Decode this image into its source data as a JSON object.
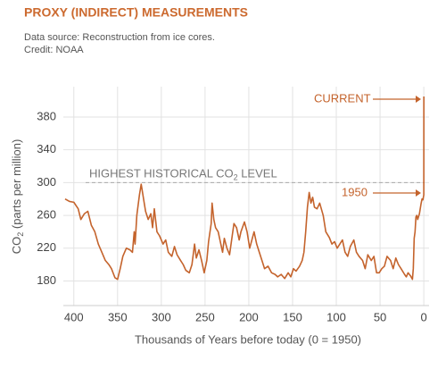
{
  "chart_data": {
    "type": "line",
    "title": "PROXY (INDIRECT) MEASUREMENTS",
    "subtitle": "Data source: Reconstruction from ice cores.",
    "credit": "Credit: NOAA",
    "xlabel": "Thousands of Years before today (0 = 1950)",
    "ylabel": [
      "CO",
      "2",
      " (parts per million)"
    ],
    "reference_line": {
      "value": 300,
      "label": [
        "HIGHEST HISTORICAL CO",
        "2",
        " LEVEL"
      ]
    },
    "annotations": [
      "CURRENT",
      "1950"
    ],
    "color": "#c4632c",
    "xlim": [
      412,
      -6
    ],
    "ylim": [
      150,
      417
    ],
    "xticks": [
      400,
      350,
      300,
      250,
      200,
      150,
      100,
      50,
      0
    ],
    "yticks": [
      180,
      220,
      260,
      300,
      340,
      380
    ],
    "grid": true,
    "x": [
      410,
      405,
      400,
      395,
      392,
      388,
      384,
      380,
      376,
      372,
      368,
      364,
      360,
      357,
      353,
      350,
      347,
      344,
      340,
      336,
      333,
      331,
      330,
      328,
      325,
      323,
      320,
      318,
      315,
      312,
      310,
      308,
      305,
      302,
      298,
      295,
      292,
      288,
      285,
      282,
      278,
      275,
      272,
      268,
      265,
      262,
      260,
      257,
      254,
      251,
      248,
      246,
      243,
      242,
      240,
      238,
      235,
      232,
      230,
      228,
      225,
      222,
      219,
      217,
      214,
      211,
      209,
      205,
      202,
      199,
      196,
      194,
      191,
      188,
      185,
      182,
      178,
      174,
      170,
      167,
      163,
      159,
      155,
      152,
      149,
      146,
      142,
      139,
      137,
      135,
      133,
      131,
      129,
      127,
      125,
      122,
      119,
      115,
      112,
      108,
      105,
      102,
      99,
      96,
      93,
      90,
      87,
      84,
      80,
      77,
      74,
      70,
      67,
      64,
      60,
      57,
      54,
      51,
      48,
      45,
      42,
      38,
      35,
      32,
      29,
      26,
      22,
      20,
      18,
      15,
      13,
      12,
      11,
      10,
      9,
      8,
      7,
      5,
      3,
      2,
      1,
      0,
      -0.03,
      -0.05,
      -0.07
    ],
    "values": [
      280,
      277,
      276,
      268,
      255,
      262,
      265,
      248,
      240,
      225,
      215,
      205,
      200,
      195,
      184,
      182,
      195,
      210,
      220,
      218,
      215,
      240,
      225,
      260,
      285,
      298,
      278,
      265,
      255,
      262,
      245,
      268,
      240,
      235,
      225,
      230,
      215,
      210,
      222,
      212,
      205,
      200,
      193,
      190,
      200,
      225,
      208,
      218,
      205,
      190,
      205,
      228,
      250,
      275,
      255,
      245,
      240,
      225,
      215,
      232,
      220,
      212,
      235,
      250,
      245,
      230,
      240,
      252,
      240,
      220,
      232,
      240,
      225,
      215,
      205,
      195,
      198,
      190,
      188,
      185,
      188,
      183,
      190,
      185,
      195,
      192,
      198,
      205,
      215,
      240,
      270,
      288,
      275,
      282,
      270,
      268,
      275,
      260,
      240,
      233,
      225,
      228,
      220,
      225,
      230,
      215,
      210,
      222,
      230,
      215,
      210,
      205,
      195,
      212,
      205,
      210,
      190,
      190,
      195,
      198,
      210,
      205,
      195,
      208,
      200,
      195,
      188,
      185,
      190,
      186,
      182,
      195,
      232,
      240,
      258,
      260,
      255,
      262,
      275,
      280,
      279,
      285,
      330,
      360,
      405
    ]
  }
}
